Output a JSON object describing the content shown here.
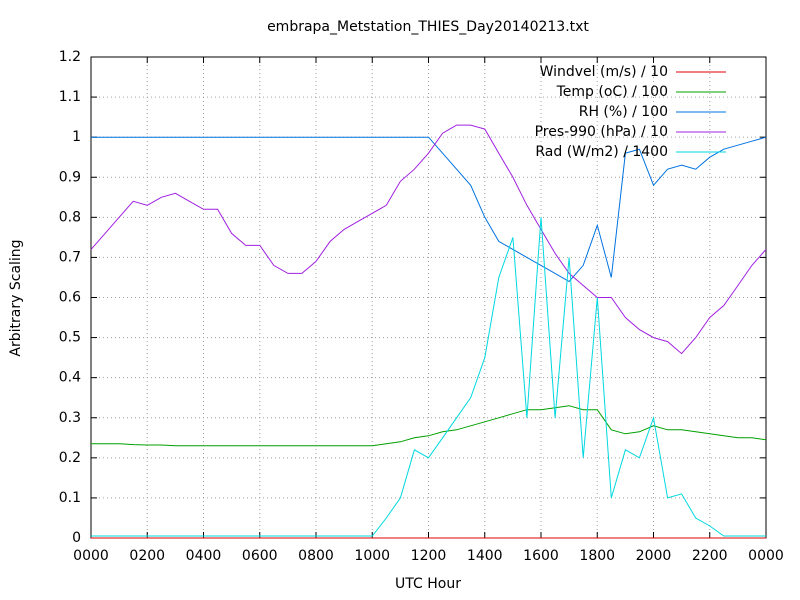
{
  "chart_data": {
    "type": "line",
    "title": "embrapa_Metstation_THIES_Day20140213.txt",
    "xlabel": "UTC Hour",
    "ylabel": "Arbitrary Scaling",
    "x": [
      0,
      0.5,
      1,
      1.5,
      2,
      2.5,
      3,
      3.5,
      4,
      4.5,
      5,
      5.5,
      6,
      6.5,
      7,
      7.5,
      8,
      8.5,
      9,
      9.5,
      10,
      10.5,
      11,
      11.5,
      12,
      12.5,
      13,
      13.5,
      14,
      14.5,
      15,
      15.5,
      16,
      16.5,
      17,
      17.5,
      18,
      18.5,
      19,
      19.5,
      20,
      20.5,
      21,
      21.5,
      22,
      22.5,
      23,
      23.5,
      24
    ],
    "series": [
      {
        "name": "Windvel (m/s) / 10",
        "color": "#e00000",
        "values": [
          0,
          0,
          0,
          0,
          0,
          0,
          0,
          0,
          0,
          0,
          0,
          0,
          0,
          0,
          0,
          0,
          0,
          0,
          0,
          0,
          0,
          0,
          0,
          0,
          0,
          0,
          0,
          0,
          0,
          0,
          0,
          0,
          0,
          0,
          0,
          0,
          0,
          0,
          0,
          0,
          0,
          0,
          0,
          0,
          0,
          0,
          0,
          0,
          0
        ]
      },
      {
        "name": "Temp (oC) / 100",
        "color": "#00a000",
        "values": [
          0.235,
          0.235,
          0.235,
          0.233,
          0.232,
          0.232,
          0.23,
          0.23,
          0.23,
          0.23,
          0.23,
          0.23,
          0.23,
          0.23,
          0.23,
          0.23,
          0.23,
          0.23,
          0.23,
          0.23,
          0.23,
          0.235,
          0.24,
          0.25,
          0.255,
          0.265,
          0.27,
          0.28,
          0.29,
          0.3,
          0.31,
          0.32,
          0.32,
          0.325,
          0.33,
          0.32,
          0.32,
          0.27,
          0.26,
          0.265,
          0.28,
          0.27,
          0.27,
          0.265,
          0.26,
          0.255,
          0.25,
          0.25,
          0.245
        ]
      },
      {
        "name": "RH (%) / 100",
        "color": "#0072e0",
        "values": [
          1,
          1,
          1,
          1,
          1,
          1,
          1,
          1,
          1,
          1,
          1,
          1,
          1,
          1,
          1,
          1,
          1,
          1,
          1,
          1,
          1,
          1,
          1,
          1,
          1,
          0.96,
          0.92,
          0.88,
          0.8,
          0.74,
          0.72,
          0.7,
          0.68,
          0.66,
          0.64,
          0.68,
          0.78,
          0.65,
          0.96,
          0.97,
          0.88,
          0.92,
          0.93,
          0.92,
          0.95,
          0.97,
          0.98,
          0.99,
          1
        ]
      },
      {
        "name": "Pres-990 (hPa) / 10",
        "color": "#a020e0",
        "values": [
          0.72,
          0.76,
          0.8,
          0.84,
          0.83,
          0.85,
          0.86,
          0.84,
          0.82,
          0.82,
          0.76,
          0.73,
          0.73,
          0.68,
          0.66,
          0.66,
          0.69,
          0.74,
          0.77,
          0.79,
          0.81,
          0.83,
          0.89,
          0.92,
          0.96,
          1.01,
          1.03,
          1.03,
          1.02,
          0.96,
          0.9,
          0.83,
          0.77,
          0.71,
          0.66,
          0.63,
          0.6,
          0.6,
          0.55,
          0.52,
          0.5,
          0.49,
          0.46,
          0.5,
          0.55,
          0.58,
          0.63,
          0.68,
          0.72
        ]
      },
      {
        "name": "Rad (W/m2) / 1400",
        "color": "#00d8e0",
        "values": [
          0.005,
          0.005,
          0.005,
          0.005,
          0.005,
          0.005,
          0.005,
          0.005,
          0.005,
          0.005,
          0.005,
          0.005,
          0.005,
          0.005,
          0.005,
          0.005,
          0.005,
          0.005,
          0.005,
          0.005,
          0.005,
          0.05,
          0.1,
          0.22,
          0.2,
          0.25,
          0.3,
          0.35,
          0.45,
          0.65,
          0.75,
          0.3,
          0.8,
          0.3,
          0.7,
          0.2,
          0.6,
          0.1,
          0.22,
          0.2,
          0.3,
          0.1,
          0.11,
          0.05,
          0.03,
          0.005,
          0.005,
          0.005,
          0.005
        ]
      }
    ],
    "xlim": [
      0,
      24
    ],
    "xticks": [
      {
        "value": 0,
        "label": "0000"
      },
      {
        "value": 2,
        "label": "0200"
      },
      {
        "value": 4,
        "label": "0400"
      },
      {
        "value": 6,
        "label": "0600"
      },
      {
        "value": 8,
        "label": "0800"
      },
      {
        "value": 10,
        "label": "1000"
      },
      {
        "value": 12,
        "label": "1200"
      },
      {
        "value": 14,
        "label": "1400"
      },
      {
        "value": 16,
        "label": "1600"
      },
      {
        "value": 18,
        "label": "1800"
      },
      {
        "value": 20,
        "label": "2000"
      },
      {
        "value": 22,
        "label": "2200"
      },
      {
        "value": 24,
        "label": "0000"
      }
    ],
    "ylim": [
      0,
      1.2
    ],
    "yticks": [
      0,
      0.1,
      0.2,
      0.3,
      0.4,
      0.5,
      0.6,
      0.7,
      0.8,
      0.9,
      1,
      1.1,
      1.2
    ],
    "grid": true,
    "legend": "top-right"
  }
}
